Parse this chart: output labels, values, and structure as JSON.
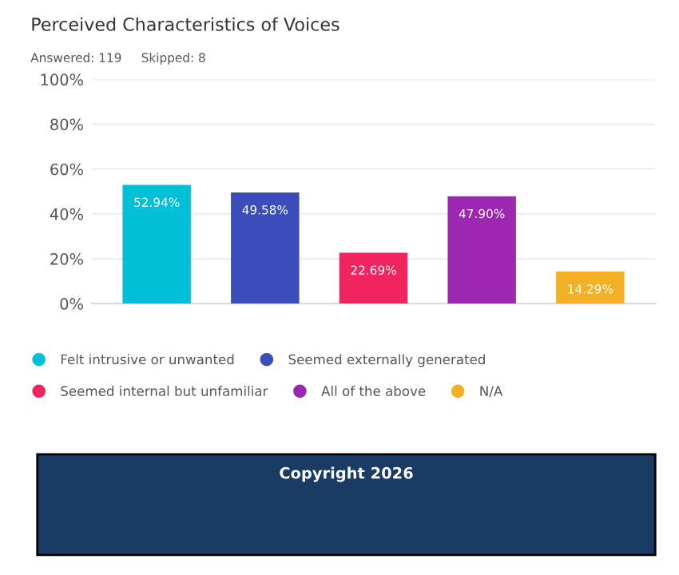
{
  "chart_data": {
    "type": "bar",
    "title": "Perceived Characteristics of Voices",
    "subtitle": "Answered: 119     Skipped: 8",
    "categories": [
      null,
      null,
      null,
      null,
      null
    ],
    "series": [
      {
        "name": "Felt intrusive or unwanted",
        "color": "#00c0d8",
        "values": [
          52.94,
          null,
          null,
          null,
          null
        ],
        "value_labels": [
          "52.94%",
          null,
          null,
          null,
          null
        ]
      },
      {
        "name": "Seemed externally generated",
        "color": "#3a4db8",
        "values": [
          null,
          49.58,
          null,
          null,
          null
        ],
        "value_labels": [
          null,
          "49.58%",
          null,
          null,
          null
        ]
      },
      {
        "name": "Seemed internal but unfamiliar",
        "color": "#f0245e",
        "values": [
          null,
          null,
          22.69,
          null,
          null
        ],
        "value_labels": [
          null,
          null,
          "22.69%",
          null,
          null
        ]
      },
      {
        "name": "All of the above",
        "color": "#9c27b0",
        "values": [
          null,
          null,
          null,
          47.9,
          null
        ],
        "value_labels": [
          null,
          null,
          null,
          "47.90%",
          null
        ]
      },
      {
        "name": "N/A",
        "color": "#f2b124",
        "values": [
          null,
          null,
          null,
          null,
          14.29
        ],
        "value_labels": [
          null,
          null,
          null,
          null,
          "14.29%"
        ]
      }
    ],
    "ylim": [
      0,
      100
    ],
    "yticks": [
      {
        "value": 0,
        "label": "0%"
      },
      {
        "value": 20,
        "label": "20%"
      },
      {
        "value": 40,
        "label": "40%"
      },
      {
        "value": 60,
        "label": "60%"
      },
      {
        "value": 80,
        "label": "80%"
      },
      {
        "value": 100,
        "label": "100%"
      }
    ],
    "tick_labels": "y",
    "grid": "y",
    "legend": "bottom",
    "annotations": [
      "Copyright 2026"
    ]
  }
}
